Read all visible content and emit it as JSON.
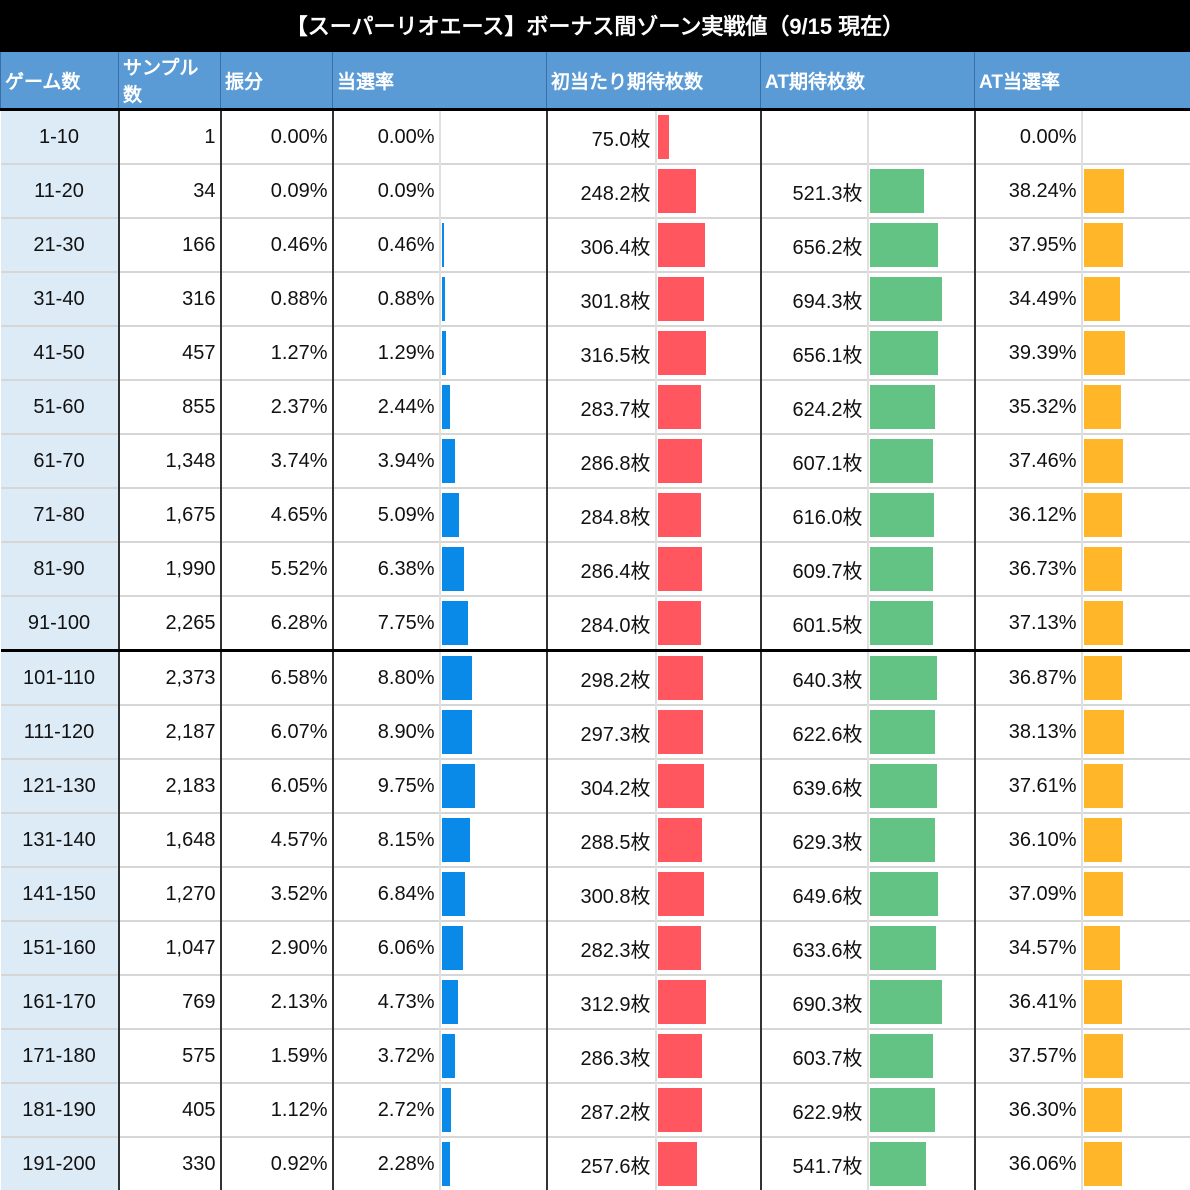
{
  "title": "【スーパーリオエース】ボーナス間ゾーン実戦値（9/15 現在）",
  "colors": {
    "header_bg": "#5b9bd5",
    "zone_bg": "#ddebf7",
    "rate_bar": "#0a8ae8",
    "first_hit_bar": "#ff5660",
    "at_medals_bar": "#63c384",
    "at_rate_bar": "#ffb628"
  },
  "headers": {
    "zone": "ゲーム数",
    "samples": "サンプル数",
    "distribution": "振分",
    "hit_rate": "当選率",
    "first_hit_medals": "初当たり期待枚数",
    "at_medals": "AT期待枚数",
    "at_rate": "AT当選率"
  },
  "rows": [
    {
      "zone": "1-10",
      "samples": "1",
      "dist": "0.00%",
      "rate": "0.00%",
      "first": "75.0枚",
      "at": "",
      "atrate": "0.00%"
    },
    {
      "zone": "11-20",
      "samples": "34",
      "dist": "0.09%",
      "rate": "0.09%",
      "first": "248.2枚",
      "at": "521.3枚",
      "atrate": "38.24%"
    },
    {
      "zone": "21-30",
      "samples": "166",
      "dist": "0.46%",
      "rate": "0.46%",
      "first": "306.4枚",
      "at": "656.2枚",
      "atrate": "37.95%"
    },
    {
      "zone": "31-40",
      "samples": "316",
      "dist": "0.88%",
      "rate": "0.88%",
      "first": "301.8枚",
      "at": "694.3枚",
      "atrate": "34.49%"
    },
    {
      "zone": "41-50",
      "samples": "457",
      "dist": "1.27%",
      "rate": "1.29%",
      "first": "316.5枚",
      "at": "656.1枚",
      "atrate": "39.39%"
    },
    {
      "zone": "51-60",
      "samples": "855",
      "dist": "2.37%",
      "rate": "2.44%",
      "first": "283.7枚",
      "at": "624.2枚",
      "atrate": "35.32%"
    },
    {
      "zone": "61-70",
      "samples": "1,348",
      "dist": "3.74%",
      "rate": "3.94%",
      "first": "286.8枚",
      "at": "607.1枚",
      "atrate": "37.46%"
    },
    {
      "zone": "71-80",
      "samples": "1,675",
      "dist": "4.65%",
      "rate": "5.09%",
      "first": "284.8枚",
      "at": "616.0枚",
      "atrate": "36.12%"
    },
    {
      "zone": "81-90",
      "samples": "1,990",
      "dist": "5.52%",
      "rate": "6.38%",
      "first": "286.4枚",
      "at": "609.7枚",
      "atrate": "36.73%"
    },
    {
      "zone": "91-100",
      "samples": "2,265",
      "dist": "6.28%",
      "rate": "7.75%",
      "first": "284.0枚",
      "at": "601.5枚",
      "atrate": "37.13%"
    },
    {
      "zone": "101-110",
      "samples": "2,373",
      "dist": "6.58%",
      "rate": "8.80%",
      "first": "298.2枚",
      "at": "640.3枚",
      "atrate": "36.87%"
    },
    {
      "zone": "111-120",
      "samples": "2,187",
      "dist": "6.07%",
      "rate": "8.90%",
      "first": "297.3枚",
      "at": "622.6枚",
      "atrate": "38.13%"
    },
    {
      "zone": "121-130",
      "samples": "2,183",
      "dist": "6.05%",
      "rate": "9.75%",
      "first": "304.2枚",
      "at": "639.6枚",
      "atrate": "37.61%"
    },
    {
      "zone": "131-140",
      "samples": "1,648",
      "dist": "4.57%",
      "rate": "8.15%",
      "first": "288.5枚",
      "at": "629.3枚",
      "atrate": "36.10%"
    },
    {
      "zone": "141-150",
      "samples": "1,270",
      "dist": "3.52%",
      "rate": "6.84%",
      "first": "300.8枚",
      "at": "649.6枚",
      "atrate": "37.09%"
    },
    {
      "zone": "151-160",
      "samples": "1,047",
      "dist": "2.90%",
      "rate": "6.06%",
      "first": "282.3枚",
      "at": "633.6枚",
      "atrate": "34.57%"
    },
    {
      "zone": "161-170",
      "samples": "769",
      "dist": "2.13%",
      "rate": "4.73%",
      "first": "312.9枚",
      "at": "690.3枚",
      "atrate": "36.41%"
    },
    {
      "zone": "171-180",
      "samples": "575",
      "dist": "1.59%",
      "rate": "3.72%",
      "first": "286.3枚",
      "at": "603.7枚",
      "atrate": "37.57%"
    },
    {
      "zone": "181-190",
      "samples": "405",
      "dist": "1.12%",
      "rate": "2.72%",
      "first": "287.2枚",
      "at": "622.9枚",
      "atrate": "36.30%"
    },
    {
      "zone": "191-200",
      "samples": "330",
      "dist": "0.92%",
      "rate": "2.28%",
      "first": "257.6枚",
      "at": "541.7枚",
      "atrate": "36.06%"
    }
  ],
  "chart_data": {
    "type": "table",
    "title": "【スーパーリオエース】ボーナス間ゾーン実戦値（9/15 現在）",
    "columns": [
      "ゲーム数",
      "サンプル数",
      "振分",
      "当選率",
      "初当たり期待枚数",
      "AT期待枚数",
      "AT当選率"
    ],
    "categories": [
      "1-10",
      "11-20",
      "21-30",
      "31-40",
      "41-50",
      "51-60",
      "61-70",
      "71-80",
      "81-90",
      "91-100",
      "101-110",
      "111-120",
      "121-130",
      "131-140",
      "141-150",
      "151-160",
      "161-170",
      "171-180",
      "181-190",
      "191-200"
    ],
    "series": [
      {
        "name": "サンプル数",
        "values": [
          1,
          34,
          166,
          316,
          457,
          855,
          1348,
          1675,
          1990,
          2265,
          2373,
          2187,
          2183,
          1648,
          1270,
          1047,
          769,
          575,
          405,
          330
        ]
      },
      {
        "name": "振分(%)",
        "values": [
          0.0,
          0.09,
          0.46,
          0.88,
          1.27,
          2.37,
          3.74,
          4.65,
          5.52,
          6.28,
          6.58,
          6.07,
          6.05,
          4.57,
          3.52,
          2.9,
          2.13,
          1.59,
          1.12,
          0.92
        ]
      },
      {
        "name": "当選率(%)",
        "values": [
          0.0,
          0.09,
          0.46,
          0.88,
          1.29,
          2.44,
          3.94,
          5.09,
          6.38,
          7.75,
          8.8,
          8.9,
          9.75,
          8.15,
          6.84,
          6.06,
          4.73,
          3.72,
          2.72,
          2.28
        ]
      },
      {
        "name": "初当たり期待枚数(枚)",
        "values": [
          75.0,
          248.2,
          306.4,
          301.8,
          316.5,
          283.7,
          286.8,
          284.8,
          286.4,
          284.0,
          298.2,
          297.3,
          304.2,
          288.5,
          300.8,
          282.3,
          312.9,
          286.3,
          287.2,
          257.6
        ]
      },
      {
        "name": "AT期待枚数(枚)",
        "values": [
          null,
          521.3,
          656.2,
          694.3,
          656.1,
          624.2,
          607.1,
          616.0,
          609.7,
          601.5,
          640.3,
          622.6,
          639.6,
          629.3,
          649.6,
          633.6,
          690.3,
          603.7,
          622.9,
          541.7
        ]
      },
      {
        "name": "AT当選率(%)",
        "values": [
          0.0,
          38.24,
          37.95,
          34.49,
          39.39,
          35.32,
          37.46,
          36.12,
          36.73,
          37.13,
          36.87,
          38.13,
          37.61,
          36.1,
          37.09,
          34.57,
          36.41,
          37.57,
          36.3,
          36.06
        ]
      }
    ]
  }
}
